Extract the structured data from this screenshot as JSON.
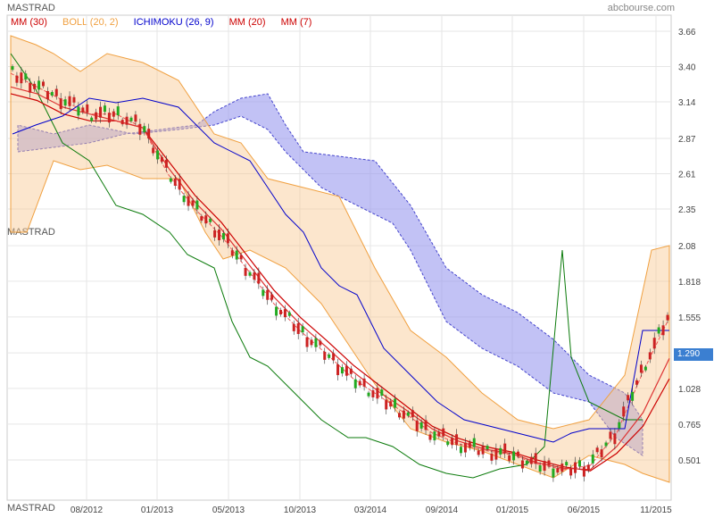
{
  "ticker": "MASTRAD",
  "source": "abcbourse.com",
  "legend": [
    {
      "label": "MM (30)",
      "color": "#cc0000"
    },
    {
      "label": "BOLL (20, 2)",
      "color": "#f0a040"
    },
    {
      "label": "ICHIMOKU (26, 9)",
      "color": "#0000cc"
    },
    {
      "label": "MM (20)",
      "color": "#cc0000"
    },
    {
      "label": "MM (7)",
      "color": "#cc0000"
    }
  ],
  "last_price": "1.290",
  "chart_data": {
    "type": "line",
    "x_ticks": [
      "08/2012",
      "01/2013",
      "05/2013",
      "10/2013",
      "03/2014",
      "09/2014",
      "01/2015",
      "06/2015",
      "11/2015"
    ],
    "y_ticks": [
      "3.66",
      "3.40",
      "3.14",
      "2.87",
      "2.61",
      "2.35",
      "2.08",
      "1.818",
      "1.555",
      "1.290",
      "1.028",
      "0.765",
      "0.501"
    ],
    "grid": true,
    "series": [
      {
        "name": "MM (30)",
        "values": [
          3.2,
          3.15,
          3.05,
          3.0,
          3.0,
          2.95,
          2.7,
          2.45,
          2.25,
          2.0,
          1.75,
          1.55,
          1.38,
          1.2,
          1.05,
          0.9,
          0.75,
          0.66,
          0.6,
          0.56,
          0.5,
          0.45,
          0.42,
          0.55,
          0.75,
          1.1
        ]
      },
      {
        "name": "MM (20)",
        "values": [
          3.25,
          3.2,
          3.1,
          3.05,
          3.0,
          2.95,
          2.65,
          2.4,
          2.2,
          1.95,
          1.7,
          1.5,
          1.33,
          1.15,
          1.0,
          0.87,
          0.73,
          0.64,
          0.58,
          0.55,
          0.48,
          0.44,
          0.43,
          0.6,
          0.85,
          1.25
        ]
      },
      {
        "name": "MM (7)",
        "values": [
          3.35,
          3.25,
          3.15,
          3.05,
          3.05,
          2.95,
          2.6,
          2.35,
          2.15,
          1.9,
          1.65,
          1.45,
          1.28,
          1.1,
          0.97,
          0.84,
          0.7,
          0.62,
          0.57,
          0.54,
          0.47,
          0.43,
          0.46,
          0.7,
          1.15,
          1.55
        ]
      }
    ]
  }
}
